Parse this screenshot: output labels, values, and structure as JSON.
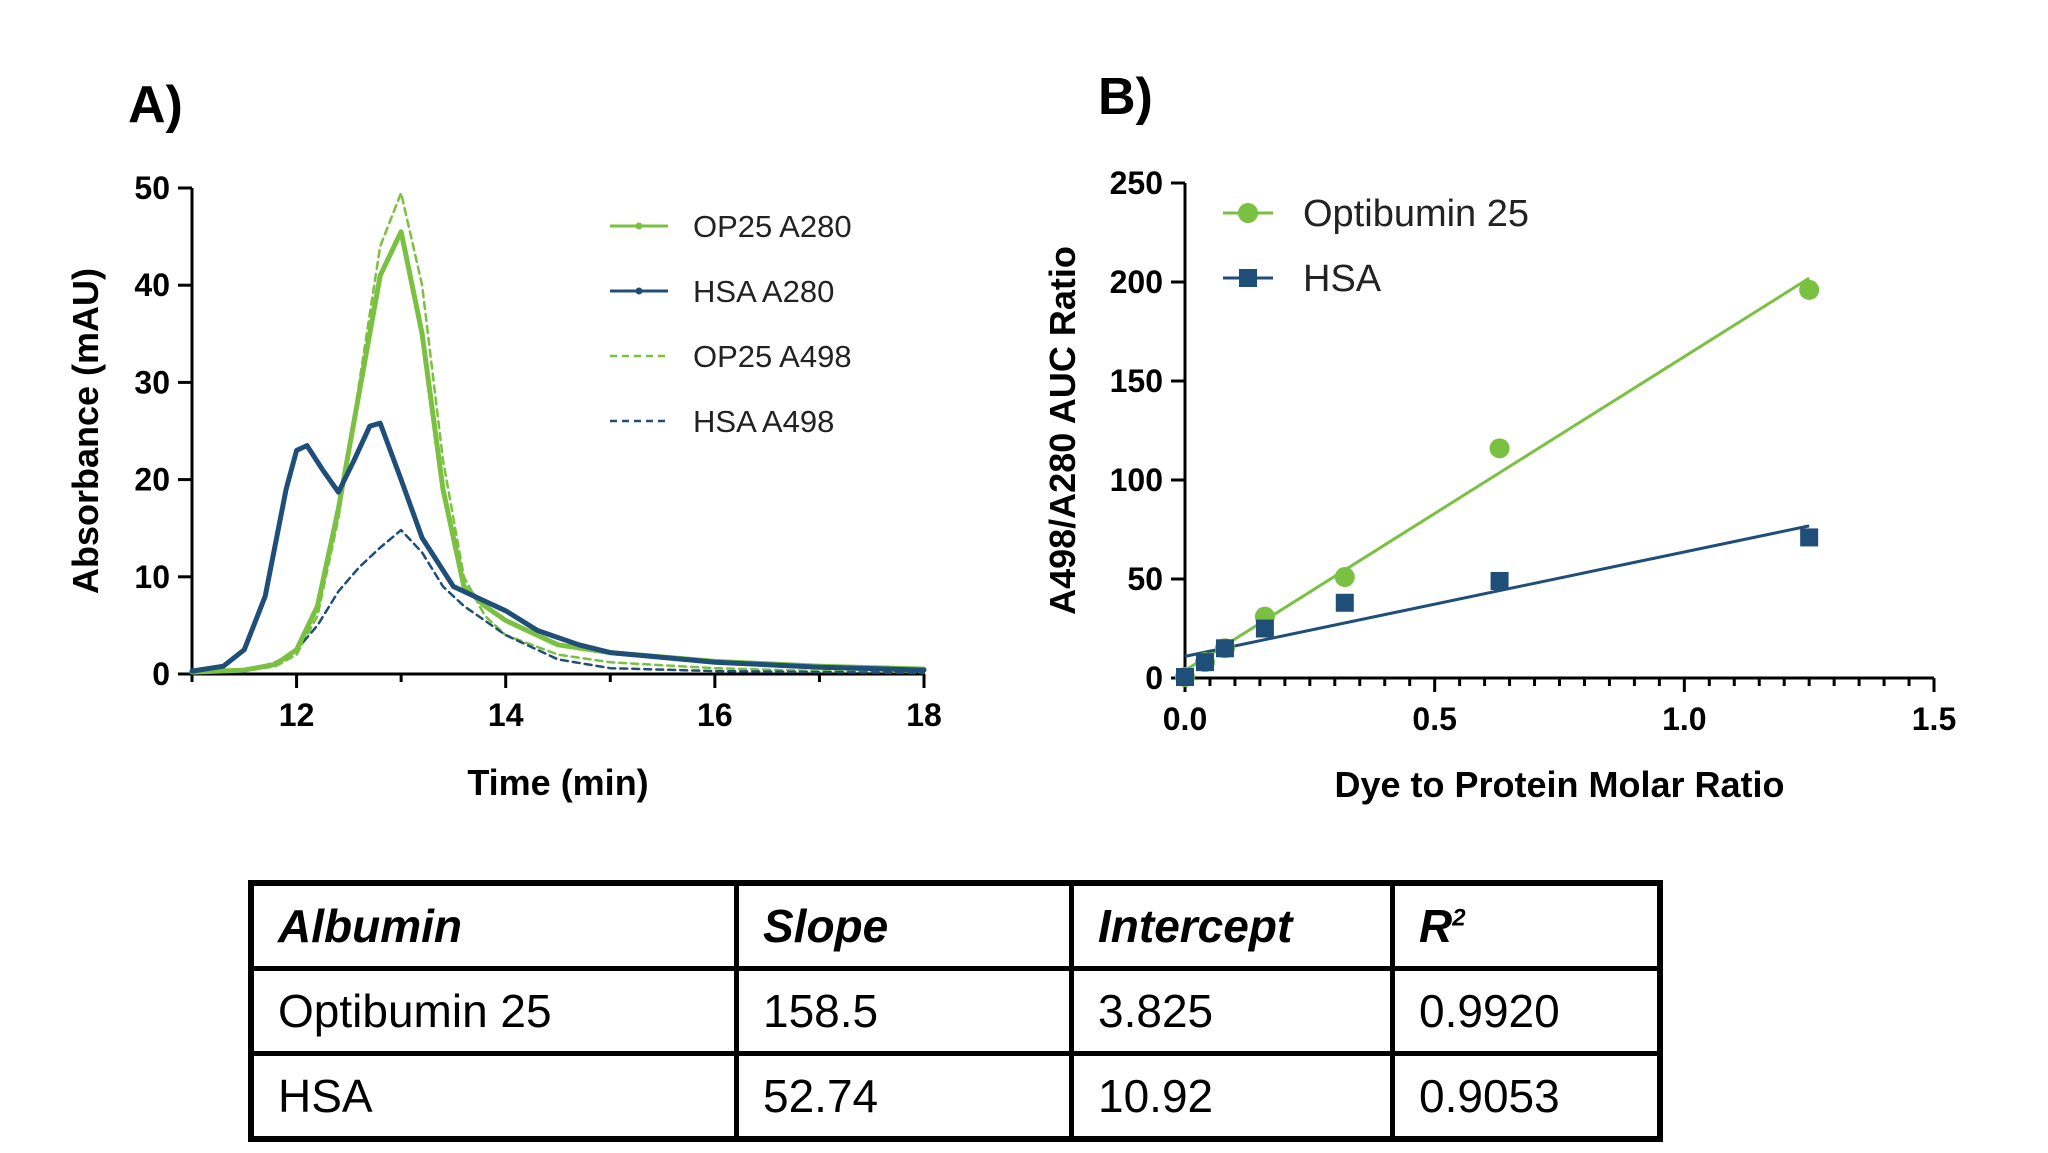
{
  "colors": {
    "green": "#7ac142",
    "blue": "#1f4e79",
    "axis": "#000000"
  },
  "panels": {
    "a_label": "A)",
    "b_label": "B)"
  },
  "chart_data": [
    {
      "type": "line",
      "panel": "A)",
      "xlabel": "Time (min)",
      "ylabel": "Absorbance (mAU)",
      "xlim": [
        11,
        18
      ],
      "ylim": [
        0,
        50
      ],
      "xticks": [
        12,
        14,
        16,
        18
      ],
      "yticks": [
        0,
        10,
        20,
        30,
        40,
        50
      ],
      "legend_position": "top-right",
      "series": [
        {
          "name": "OP25 A280",
          "color": "#7ac142",
          "style": "solid-marker",
          "x": [
            11.0,
            11.5,
            11.8,
            12.0,
            12.2,
            12.4,
            12.6,
            12.8,
            13.0,
            13.2,
            13.4,
            13.6,
            13.8,
            14.0,
            14.5,
            15.0,
            16.0,
            17.0,
            18.0
          ],
          "y": [
            0.2,
            0.4,
            1.0,
            2.5,
            7,
            17,
            29,
            41,
            45.5,
            35,
            19,
            9,
            7,
            5.5,
            3,
            2.2,
            1.3,
            0.8,
            0.5
          ]
        },
        {
          "name": "HSA A280",
          "color": "#1f4e79",
          "style": "solid-marker",
          "x": [
            11.0,
            11.3,
            11.5,
            11.7,
            11.9,
            12.0,
            12.1,
            12.25,
            12.4,
            12.55,
            12.7,
            12.8,
            13.0,
            13.2,
            13.5,
            13.8,
            14.0,
            14.3,
            14.7,
            15.0,
            16.0,
            17.0,
            18.0
          ],
          "y": [
            0.3,
            0.8,
            2.5,
            8,
            19,
            23,
            23.5,
            21,
            18.7,
            22,
            25.5,
            25.8,
            20,
            14,
            9,
            7.5,
            6.5,
            4.5,
            3,
            2.2,
            1.2,
            0.7,
            0.4
          ]
        },
        {
          "name": "OP25 A498",
          "color": "#7ac142",
          "style": "dashed",
          "x": [
            11.0,
            11.5,
            11.8,
            12.0,
            12.2,
            12.4,
            12.6,
            12.8,
            13.0,
            13.2,
            13.4,
            13.6,
            13.8,
            14.0,
            14.5,
            15.0,
            16.0,
            17.0,
            18.0
          ],
          "y": [
            0.1,
            0.3,
            0.8,
            2,
            6,
            16,
            30,
            44,
            49.5,
            40,
            22,
            10,
            6,
            4,
            2,
            1.2,
            0.6,
            0.3,
            0.2
          ]
        },
        {
          "name": "HSA A498",
          "color": "#1f4e79",
          "style": "dashed",
          "x": [
            11.0,
            11.5,
            11.8,
            12.0,
            12.2,
            12.4,
            12.6,
            12.8,
            13.0,
            13.2,
            13.4,
            13.6,
            13.8,
            14.0,
            14.5,
            15.0,
            16.0,
            17.0,
            18.0
          ],
          "y": [
            0.1,
            0.3,
            1.2,
            2.5,
            5,
            8.5,
            11,
            13,
            14.8,
            12.5,
            9,
            7,
            5.5,
            4,
            1.5,
            0.6,
            0.3,
            0.2,
            0.1
          ]
        }
      ]
    },
    {
      "type": "scatter",
      "panel": "B)",
      "xlabel": "Dye to Protein Molar Ratio",
      "ylabel": "A498/A280 AUC Ratio",
      "xlim": [
        0,
        1.5
      ],
      "ylim": [
        0,
        250
      ],
      "xticks": [
        0.0,
        0.5,
        1.0,
        1.5
      ],
      "xtick_labels": [
        "0.0",
        "0.5",
        "1.0",
        "1.5"
      ],
      "yticks": [
        0,
        50,
        100,
        150,
        200,
        250
      ],
      "legend_position": "top-left",
      "series": [
        {
          "name": "Optibumin 25",
          "color": "#7ac142",
          "marker": "circle",
          "x": [
            0.0,
            0.04,
            0.08,
            0.16,
            0.32,
            0.63,
            1.25
          ],
          "y": [
            0.5,
            8,
            15,
            31,
            51,
            116,
            196
          ],
          "fit": {
            "slope": 158.5,
            "intercept": 3.825
          }
        },
        {
          "name": "HSA",
          "color": "#1f4e79",
          "marker": "square",
          "x": [
            0.0,
            0.04,
            0.08,
            0.16,
            0.32,
            0.63,
            1.25
          ],
          "y": [
            0.5,
            8,
            15,
            25,
            38,
            49,
            71
          ],
          "fit": {
            "slope": 52.74,
            "intercept": 10.92
          }
        }
      ]
    },
    {
      "type": "table",
      "headers": [
        "Albumin",
        "Slope",
        "Intercept",
        "R²"
      ],
      "rows": [
        [
          "Optibumin 25",
          "158.5",
          "3.825",
          "0.9920"
        ],
        [
          "HSA",
          "52.74",
          "10.92",
          "0.9053"
        ]
      ]
    }
  ],
  "table": {
    "headers": {
      "albumin": "Albumin",
      "slope": "Slope",
      "intercept": "Intercept",
      "r2_base": "R",
      "r2_sup": "2"
    },
    "rows": [
      {
        "albumin": "Optibumin 25",
        "slope": "158.5",
        "intercept": "3.825",
        "r2": "0.9920"
      },
      {
        "albumin": "HSA",
        "slope": "52.74",
        "intercept": "10.92",
        "r2": "0.9053"
      }
    ]
  }
}
